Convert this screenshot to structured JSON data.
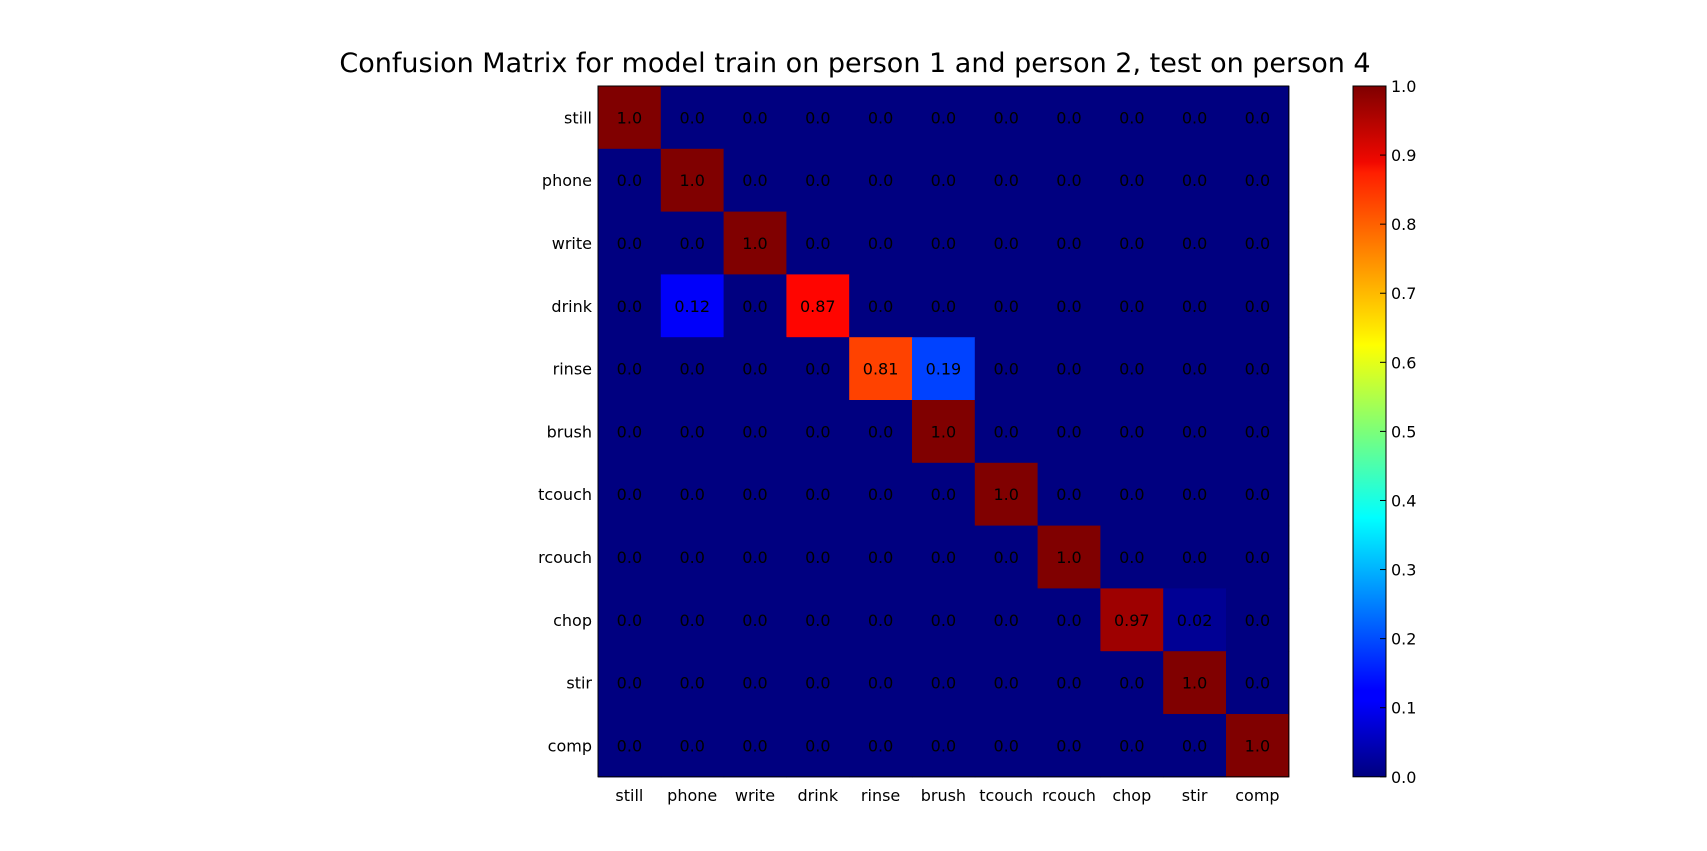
{
  "chart_data": {
    "type": "heatmap",
    "title": "Confusion Matrix for model train on person 1 and person 2, test on person 4",
    "row_labels": [
      "still",
      "phone",
      "write",
      "drink",
      "rinse",
      "brush",
      "tcouch",
      "rcouch",
      "chop",
      "stir",
      "comp"
    ],
    "col_labels": [
      "still",
      "phone",
      "write",
      "drink",
      "rinse",
      "brush",
      "tcouch",
      "rcouch",
      "chop",
      "stir",
      "comp"
    ],
    "values": [
      [
        1.0,
        0.0,
        0.0,
        0.0,
        0.0,
        0.0,
        0.0,
        0.0,
        0.0,
        0.0,
        0.0
      ],
      [
        0.0,
        1.0,
        0.0,
        0.0,
        0.0,
        0.0,
        0.0,
        0.0,
        0.0,
        0.0,
        0.0
      ],
      [
        0.0,
        0.0,
        1.0,
        0.0,
        0.0,
        0.0,
        0.0,
        0.0,
        0.0,
        0.0,
        0.0
      ],
      [
        0.0,
        0.12,
        0.0,
        0.87,
        0.0,
        0.0,
        0.0,
        0.0,
        0.0,
        0.0,
        0.0
      ],
      [
        0.0,
        0.0,
        0.0,
        0.0,
        0.81,
        0.19,
        0.0,
        0.0,
        0.0,
        0.0,
        0.0
      ],
      [
        0.0,
        0.0,
        0.0,
        0.0,
        0.0,
        1.0,
        0.0,
        0.0,
        0.0,
        0.0,
        0.0
      ],
      [
        0.0,
        0.0,
        0.0,
        0.0,
        0.0,
        0.0,
        1.0,
        0.0,
        0.0,
        0.0,
        0.0
      ],
      [
        0.0,
        0.0,
        0.0,
        0.0,
        0.0,
        0.0,
        0.0,
        1.0,
        0.0,
        0.0,
        0.0
      ],
      [
        0.0,
        0.0,
        0.0,
        0.0,
        0.0,
        0.0,
        0.0,
        0.0,
        0.97,
        0.02,
        0.0
      ],
      [
        0.0,
        0.0,
        0.0,
        0.0,
        0.0,
        0.0,
        0.0,
        0.0,
        0.0,
        1.0,
        0.0
      ],
      [
        0.0,
        0.0,
        0.0,
        0.0,
        0.0,
        0.0,
        0.0,
        0.0,
        0.0,
        0.0,
        1.0
      ]
    ],
    "cell_labels": [
      [
        "1.0",
        "0.0",
        "0.0",
        "0.0",
        "0.0",
        "0.0",
        "0.0",
        "0.0",
        "0.0",
        "0.0",
        "0.0"
      ],
      [
        "0.0",
        "1.0",
        "0.0",
        "0.0",
        "0.0",
        "0.0",
        "0.0",
        "0.0",
        "0.0",
        "0.0",
        "0.0"
      ],
      [
        "0.0",
        "0.0",
        "1.0",
        "0.0",
        "0.0",
        "0.0",
        "0.0",
        "0.0",
        "0.0",
        "0.0",
        "0.0"
      ],
      [
        "0.0",
        "0.12",
        "0.0",
        "0.87",
        "0.0",
        "0.0",
        "0.0",
        "0.0",
        "0.0",
        "0.0",
        "0.0"
      ],
      [
        "0.0",
        "0.0",
        "0.0",
        "0.0",
        "0.81",
        "0.19",
        "0.0",
        "0.0",
        "0.0",
        "0.0",
        "0.0"
      ],
      [
        "0.0",
        "0.0",
        "0.0",
        "0.0",
        "0.0",
        "1.0",
        "0.0",
        "0.0",
        "0.0",
        "0.0",
        "0.0"
      ],
      [
        "0.0",
        "0.0",
        "0.0",
        "0.0",
        "0.0",
        "0.0",
        "1.0",
        "0.0",
        "0.0",
        "0.0",
        "0.0"
      ],
      [
        "0.0",
        "0.0",
        "0.0",
        "0.0",
        "0.0",
        "0.0",
        "0.0",
        "1.0",
        "0.0",
        "0.0",
        "0.0"
      ],
      [
        "0.0",
        "0.0",
        "0.0",
        "0.0",
        "0.0",
        "0.0",
        "0.0",
        "0.0",
        "0.97",
        "0.02",
        "0.0"
      ],
      [
        "0.0",
        "0.0",
        "0.0",
        "0.0",
        "0.0",
        "0.0",
        "0.0",
        "0.0",
        "0.0",
        "1.0",
        "0.0"
      ],
      [
        "0.0",
        "0.0",
        "0.0",
        "0.0",
        "0.0",
        "0.0",
        "0.0",
        "0.0",
        "0.0",
        "0.0",
        "1.0"
      ]
    ],
    "colormap": "jet",
    "colorbar": {
      "range": [
        0.0,
        1.0
      ],
      "ticks": [
        "0.0",
        "0.1",
        "0.2",
        "0.3",
        "0.4",
        "0.5",
        "0.6",
        "0.7",
        "0.8",
        "0.9",
        "1.0"
      ]
    },
    "grid": false
  }
}
